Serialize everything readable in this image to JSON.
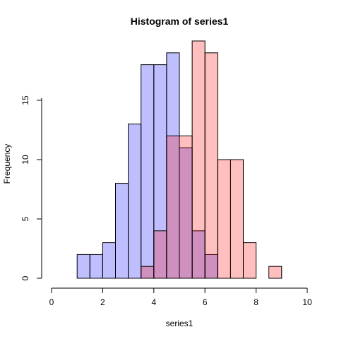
{
  "chart_data": {
    "type": "bar",
    "title": "Histogram of series1",
    "xlabel": "series1",
    "ylabel": "Frequency",
    "xlim": [
      0,
      10
    ],
    "ylim": [
      0,
      20
    ],
    "x_ticks": [
      "0",
      "2",
      "4",
      "6",
      "8",
      "10"
    ],
    "y_ticks": [
      "0",
      "5",
      "10",
      "15"
    ],
    "bin_width": 0.5,
    "grid": false,
    "series": [
      {
        "color": "#0000ff",
        "opacity": 0.25,
        "bins": [
          {
            "start": 1.0,
            "end": 1.5,
            "count": 2
          },
          {
            "start": 1.5,
            "end": 2.0,
            "count": 2
          },
          {
            "start": 2.0,
            "end": 2.5,
            "count": 3
          },
          {
            "start": 2.5,
            "end": 3.0,
            "count": 8
          },
          {
            "start": 3.0,
            "end": 3.5,
            "count": 13
          },
          {
            "start": 3.5,
            "end": 4.0,
            "count": 18
          },
          {
            "start": 4.0,
            "end": 4.5,
            "count": 18
          },
          {
            "start": 4.5,
            "end": 5.0,
            "count": 19
          },
          {
            "start": 5.0,
            "end": 5.5,
            "count": 11
          },
          {
            "start": 5.5,
            "end": 6.0,
            "count": 4
          },
          {
            "start": 6.0,
            "end": 6.5,
            "count": 2
          }
        ]
      },
      {
        "color": "#ff0000",
        "opacity": 0.25,
        "bins": [
          {
            "start": 3.5,
            "end": 4.0,
            "count": 1
          },
          {
            "start": 4.0,
            "end": 4.5,
            "count": 4
          },
          {
            "start": 4.5,
            "end": 5.0,
            "count": 12
          },
          {
            "start": 5.0,
            "end": 5.5,
            "count": 12
          },
          {
            "start": 5.5,
            "end": 6.0,
            "count": 20
          },
          {
            "start": 6.0,
            "end": 6.5,
            "count": 19
          },
          {
            "start": 6.5,
            "end": 7.0,
            "count": 10
          },
          {
            "start": 7.0,
            "end": 7.5,
            "count": 10
          },
          {
            "start": 7.5,
            "end": 8.0,
            "count": 3
          },
          {
            "start": 8.5,
            "end": 9.0,
            "count": 1
          }
        ]
      }
    ]
  }
}
